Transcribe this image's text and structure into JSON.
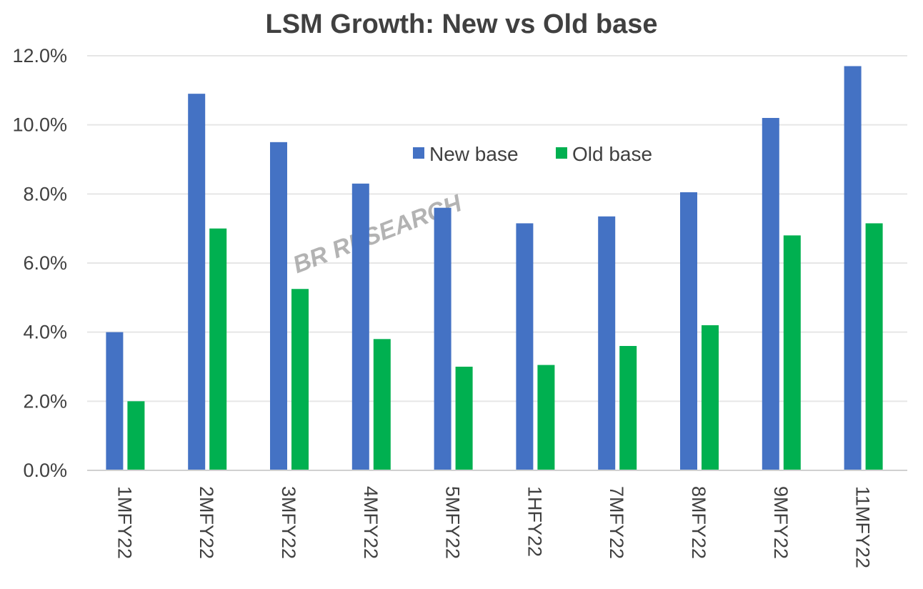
{
  "watermark": "BR RESEARCH",
  "colors": {
    "new_base": "#4472C4",
    "old_base": "#00B050",
    "text": "#404040",
    "grid": "#e6e6e6"
  },
  "chart_data": {
    "type": "bar",
    "title": "LSM Growth: New vs Old base",
    "xlabel": "",
    "ylabel": "",
    "categories": [
      "1MFY22",
      "2MFY22",
      "3MFY22",
      "4MFY22",
      "5MFY22",
      "1HFY22",
      "7MFY22",
      "8MFY22",
      "9MFY22",
      "11MFY22"
    ],
    "series": [
      {
        "name": "New base",
        "values": [
          4.0,
          10.9,
          9.5,
          8.3,
          7.6,
          7.15,
          7.35,
          8.05,
          10.2,
          11.7
        ]
      },
      {
        "name": "Old base",
        "values": [
          2.0,
          7.0,
          5.25,
          3.8,
          3.0,
          3.05,
          3.6,
          4.2,
          6.8,
          7.15
        ]
      }
    ],
    "ylim": [
      0,
      12
    ],
    "y_ticks": [
      "0.0%",
      "2.0%",
      "4.0%",
      "6.0%",
      "8.0%",
      "10.0%",
      "12.0%"
    ],
    "y_tick_values": [
      0,
      2,
      4,
      6,
      8,
      10,
      12
    ],
    "y_unit": "percent",
    "grid": true,
    "legend_position": "inside-top-center"
  }
}
